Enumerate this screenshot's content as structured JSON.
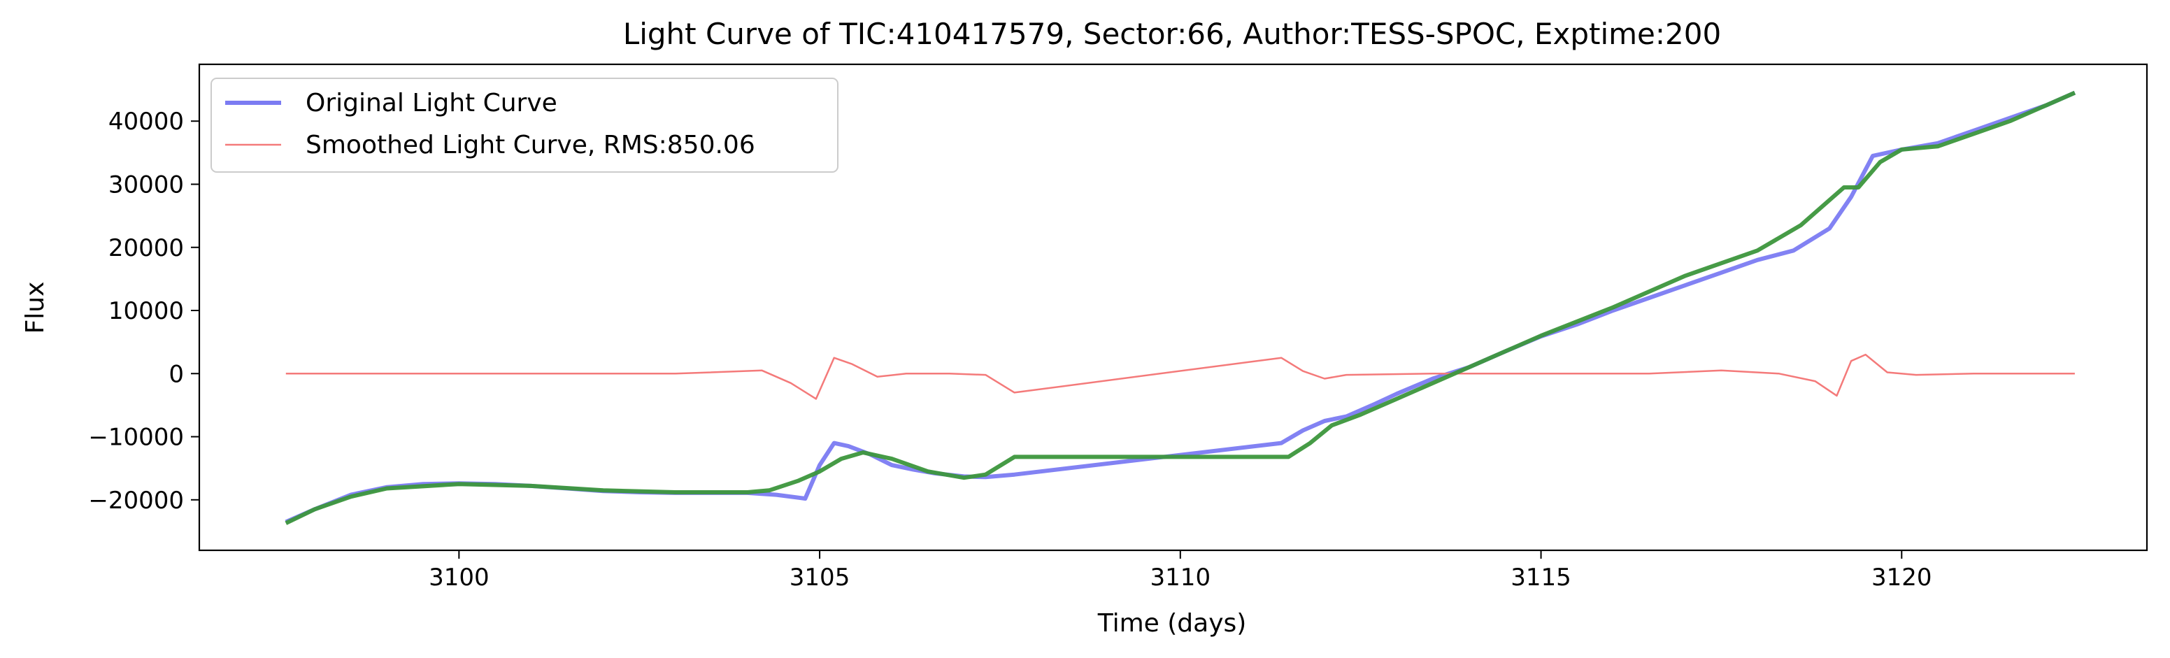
{
  "chart_data": {
    "type": "line",
    "title": "Light Curve of TIC:410417579, Sector:66, Author:TESS-SPOC, Exptime:200",
    "xlabel": "Time (days)",
    "ylabel": "Flux",
    "xlim": [
      3096.4,
      3123.4
    ],
    "ylim": [
      -28000,
      49000
    ],
    "xticks": [
      3100,
      3105,
      3110,
      3115,
      3120
    ],
    "yticks": [
      -20000,
      -10000,
      0,
      10000,
      20000,
      30000,
      40000
    ],
    "xtick_labels": [
      "3100",
      "3105",
      "3110",
      "3115",
      "3120"
    ],
    "ytick_labels": [
      "−20000",
      "−10000",
      "0",
      "10000",
      "20000",
      "30000",
      "40000"
    ],
    "grid": false,
    "legend_position": "top-left",
    "series": [
      {
        "name": "Original Light Curve",
        "color": "#7b7bf2",
        "x": [
          3097.6,
          3098.0,
          3098.5,
          3099.0,
          3099.5,
          3100.0,
          3100.5,
          3101.0,
          3101.5,
          3102.0,
          3102.5,
          3103.0,
          3103.5,
          3104.0,
          3104.4,
          3104.8,
          3105.0,
          3105.2,
          3105.4,
          3105.7,
          3106.0,
          3106.3,
          3106.6,
          3107.0,
          3107.3,
          3107.7,
          3111.4,
          3111.7,
          3112.0,
          3112.3,
          3112.7,
          3113.0,
          3113.5,
          3114.0,
          3114.5,
          3115.0,
          3115.5,
          3116.0,
          3116.5,
          3117.0,
          3117.5,
          3118.0,
          3118.5,
          3119.0,
          3119.3,
          3119.6,
          3120.0,
          3120.5,
          3121.0,
          3121.5,
          3122.0,
          3122.4
        ],
        "y": [
          -23500,
          -21500,
          -19200,
          -18000,
          -17500,
          -17400,
          -17500,
          -17800,
          -18200,
          -18600,
          -18800,
          -18900,
          -18900,
          -18900,
          -19200,
          -19800,
          -14500,
          -11000,
          -11500,
          -12800,
          -14500,
          -15200,
          -15800,
          -16300,
          -16400,
          -16000,
          -11000,
          -9000,
          -7500,
          -6800,
          -4800,
          -3200,
          -800,
          1000,
          3500,
          5900,
          7800,
          10000,
          12000,
          14000,
          16000,
          18000,
          19500,
          23000,
          28000,
          34500,
          35500,
          36500,
          38500,
          40500,
          42500,
          44500
        ]
      },
      {
        "name": "Smoothed Light Curve, RMS:850.06",
        "color": "#f47a7a",
        "x": [
          3097.6,
          3098.5,
          3100.0,
          3101.5,
          3103.0,
          3104.2,
          3104.6,
          3104.95,
          3105.2,
          3105.45,
          3105.8,
          3106.2,
          3106.8,
          3107.3,
          3107.7,
          3111.4,
          3111.7,
          3112.0,
          3112.3,
          3113.5,
          3115.0,
          3116.5,
          3117.5,
          3118.3,
          3118.8,
          3119.1,
          3119.3,
          3119.5,
          3119.8,
          3120.2,
          3121.0,
          3122.0,
          3122.4
        ],
        "y": [
          0,
          0,
          0,
          0,
          0,
          500,
          -1500,
          -4000,
          2500,
          1500,
          -500,
          0,
          0,
          -200,
          -3000,
          2500,
          400,
          -800,
          -200,
          0,
          0,
          0,
          500,
          0,
          -1200,
          -3500,
          2000,
          3000,
          200,
          -200,
          0,
          0,
          0
        ]
      },
      {
        "name": "",
        "color": "#3c963c",
        "x": [
          3097.6,
          3098.0,
          3098.5,
          3099.0,
          3100.0,
          3101.0,
          3102.0,
          3103.0,
          3104.0,
          3104.3,
          3104.7,
          3105.0,
          3105.3,
          3105.6,
          3106.0,
          3106.5,
          3107.0,
          3107.3,
          3107.7,
          3111.5,
          3111.8,
          3112.1,
          3112.5,
          3113.0,
          3114.0,
          3115.0,
          3116.0,
          3117.0,
          3118.0,
          3118.6,
          3119.0,
          3119.2,
          3119.4,
          3119.7,
          3120.0,
          3120.5,
          3121.0,
          3121.5,
          3122.0,
          3122.4
        ],
        "y": [
          -23700,
          -21500,
          -19500,
          -18200,
          -17500,
          -17800,
          -18500,
          -18800,
          -18800,
          -18500,
          -17000,
          -15500,
          -13500,
          -12500,
          -13500,
          -15500,
          -16500,
          -16000,
          -13200,
          -13200,
          -11000,
          -8200,
          -6500,
          -4000,
          1000,
          6000,
          10500,
          15500,
          19500,
          23500,
          27500,
          29500,
          29500,
          33500,
          35500,
          36000,
          38000,
          40000,
          42500,
          44500
        ]
      }
    ]
  }
}
